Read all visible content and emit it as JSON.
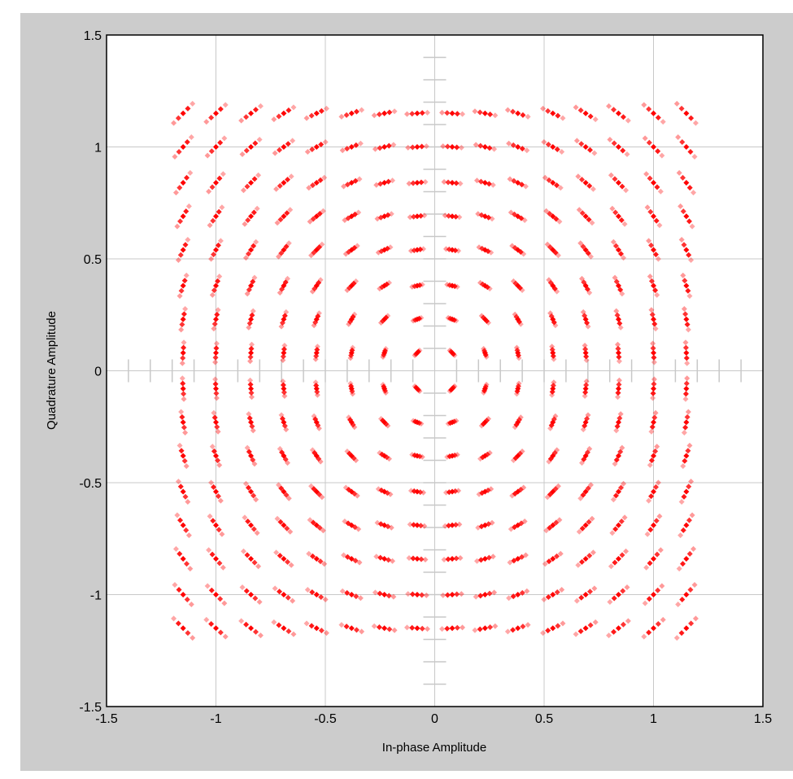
{
  "chart_data": {
    "type": "scatter",
    "title": "",
    "xlabel": "In-phase Amplitude",
    "ylabel": "Quadrature Amplitude",
    "xlim": [
      -1.5,
      1.5
    ],
    "ylim": [
      -1.5,
      1.5
    ],
    "xticks": [
      "-1.5",
      "-1",
      "-0.5",
      "0",
      "0.5",
      "1",
      "1.5"
    ],
    "yticks": [
      "-1.5",
      "-1",
      "-0.5",
      "0",
      "0.5",
      "1",
      "1.5"
    ],
    "grid": true,
    "legend": "none",
    "marker": "diamond",
    "colors": {
      "points": "#ff0000",
      "grid": "#c8c8c8",
      "background": "#cccccc",
      "plot": "#ffffff"
    },
    "series": [
      {
        "constellation": "16x16 grid",
        "i_levels": [
          -1.15,
          -1.0,
          -0.84,
          -0.69,
          -0.54,
          -0.38,
          -0.23,
          -0.08,
          0.08,
          0.23,
          0.38,
          0.54,
          0.69,
          0.84,
          1.0,
          1.15
        ],
        "q_levels": [
          -1.15,
          -1.0,
          -0.84,
          -0.69,
          -0.54,
          -0.38,
          -0.23,
          -0.08,
          0.08,
          0.23,
          0.38,
          0.54,
          0.69,
          0.84,
          1.0,
          1.15
        ]
      }
    ]
  }
}
